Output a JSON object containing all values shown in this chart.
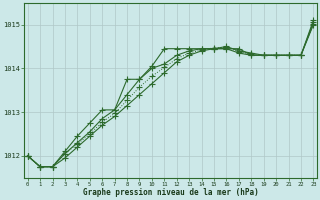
{
  "x": [
    0,
    1,
    2,
    3,
    4,
    5,
    6,
    7,
    8,
    9,
    10,
    11,
    12,
    13,
    14,
    15,
    16,
    17,
    18,
    19,
    20,
    21,
    22,
    23
  ],
  "line1": [
    1012.0,
    1011.75,
    1011.75,
    1012.1,
    1012.45,
    1012.75,
    1013.05,
    1013.05,
    1013.75,
    1013.75,
    1014.05,
    1014.45,
    1014.45,
    1014.45,
    1014.45,
    1014.45,
    1014.45,
    1014.45,
    1014.3,
    1014.3,
    1014.3,
    1014.3,
    1014.3,
    1015.1
  ],
  "line2": [
    1012.0,
    1011.75,
    1011.75,
    1012.05,
    1012.3,
    1012.55,
    1012.85,
    1013.05,
    1013.4,
    1013.75,
    1014.0,
    1014.1,
    1014.3,
    1014.4,
    1014.45,
    1014.45,
    1014.45,
    1014.35,
    1014.3,
    1014.3,
    1014.3,
    1014.3,
    1014.3,
    1015.05
  ],
  "line3": [
    1012.0,
    1011.75,
    1011.75,
    1011.95,
    1012.2,
    1012.45,
    1012.7,
    1012.9,
    1013.15,
    1013.4,
    1013.65,
    1013.9,
    1014.15,
    1014.3,
    1014.4,
    1014.45,
    1014.5,
    1014.4,
    1014.35,
    1014.3,
    1014.3,
    1014.3,
    1014.3,
    1015.0
  ],
  "line4": [
    1012.0,
    1011.75,
    1011.75,
    1012.05,
    1012.27,
    1012.5,
    1012.77,
    1012.97,
    1013.27,
    1013.57,
    1013.82,
    1014.02,
    1014.22,
    1014.35,
    1014.42,
    1014.47,
    1014.48,
    1014.38,
    1014.32,
    1014.3,
    1014.3,
    1014.3,
    1014.3,
    1015.02
  ],
  "bg_color": "#cce8e8",
  "line_color": "#2d6a2d",
  "grid_color": "#b0c8c8",
  "xlabel": "Graphe pression niveau de la mer (hPa)",
  "ylim_min": 1011.5,
  "ylim_max": 1015.5,
  "yticks": [
    1012,
    1013,
    1014,
    1015
  ],
  "xticks": [
    0,
    1,
    2,
    3,
    4,
    5,
    6,
    7,
    8,
    9,
    10,
    11,
    12,
    13,
    14,
    15,
    16,
    17,
    18,
    19,
    20,
    21,
    22,
    23
  ]
}
